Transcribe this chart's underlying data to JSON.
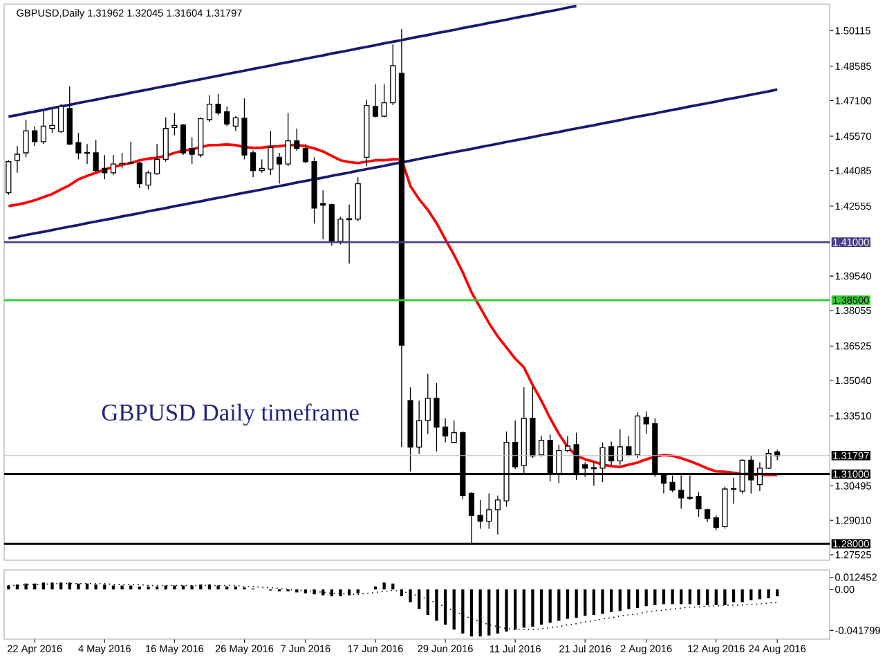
{
  "chart_data": [
    {
      "type": "candlestick",
      "title": "GBPUSD,Daily  1.31962 1.32045 1.31604 1.31797",
      "categories": [
        null,
        null,
        null,
        null,
        null,
        null,
        null,
        null,
        null,
        null,
        null,
        null,
        null,
        null,
        null,
        null,
        null,
        null,
        null,
        null,
        null,
        null,
        null,
        null,
        null,
        null,
        null,
        null,
        null,
        null,
        null,
        null,
        null,
        null,
        null,
        null,
        null,
        null,
        null,
        null,
        null,
        null,
        null,
        null,
        null,
        null,
        null,
        null,
        null,
        null,
        null,
        null,
        null,
        null,
        null,
        null,
        null,
        null,
        null,
        null,
        null,
        null,
        null,
        null,
        null,
        null,
        null,
        null,
        null,
        null,
        null,
        null,
        null,
        null,
        null,
        null,
        null,
        null,
        null,
        null,
        null,
        null,
        null,
        null,
        null,
        null,
        null,
        null,
        null
      ],
      "ohlc": [
        [
          1.4313,
          1.4453,
          1.4304,
          1.4447
        ],
        [
          1.4453,
          1.4514,
          1.4399,
          1.4479
        ],
        [
          1.4485,
          1.4628,
          1.4466,
          1.458
        ],
        [
          1.458,
          1.46,
          1.4514,
          1.4533
        ],
        [
          1.4533,
          1.4666,
          1.4523,
          1.46
        ],
        [
          1.459,
          1.4676,
          1.4571,
          1.4603
        ],
        [
          1.4577,
          1.4695,
          1.4571,
          1.4685
        ],
        [
          1.4676,
          1.4771,
          1.4519,
          1.4523
        ],
        [
          1.4529,
          1.4571,
          1.4457,
          1.4485
        ],
        [
          1.4487,
          1.4523,
          1.4437,
          1.4483
        ],
        [
          1.4485,
          1.4542,
          1.4403,
          1.4409
        ],
        [
          1.4418,
          1.4476,
          1.4371,
          1.4399
        ],
        [
          1.4399,
          1.4476,
          1.439,
          1.4437
        ],
        [
          1.4434,
          1.4485,
          1.4418,
          1.4439
        ],
        [
          1.4441,
          1.4533,
          1.4437,
          1.4443
        ],
        [
          1.4441,
          1.4447,
          1.4333,
          1.4352
        ],
        [
          1.4346,
          1.4409,
          1.4327,
          1.4399
        ],
        [
          1.4395,
          1.4523,
          1.439,
          1.4457
        ],
        [
          1.4457,
          1.4638,
          1.4447,
          1.459
        ],
        [
          1.4594,
          1.4657,
          1.4561,
          1.4603
        ],
        [
          1.4605,
          1.4609,
          1.4476,
          1.4485
        ],
        [
          1.4504,
          1.4552,
          1.4437,
          1.4479
        ],
        [
          1.4476,
          1.4638,
          1.4466,
          1.4632
        ],
        [
          1.4628,
          1.4733,
          1.4619,
          1.4695
        ],
        [
          1.4695,
          1.4739,
          1.4647,
          1.4657
        ],
        [
          1.4662,
          1.4685,
          1.46,
          1.4609
        ],
        [
          1.46,
          1.4643,
          1.458,
          1.4636
        ],
        [
          1.4634,
          1.472,
          1.4457,
          1.4476
        ],
        [
          1.4485,
          1.4495,
          1.438,
          1.4409
        ],
        [
          1.4409,
          1.4457,
          1.4399,
          1.4418
        ],
        [
          1.4415,
          1.458,
          1.439,
          1.4508
        ],
        [
          1.4466,
          1.4485,
          1.4352,
          1.4437
        ],
        [
          1.4437,
          1.4657,
          1.4428,
          1.4537
        ],
        [
          1.4537,
          1.459,
          1.4495,
          1.4504
        ],
        [
          1.4504,
          1.4523,
          1.4441,
          1.4447
        ],
        [
          1.4447,
          1.4466,
          1.418,
          1.4247
        ],
        [
          1.4266,
          1.4323,
          1.4113,
          1.426
        ],
        [
          1.4262,
          1.4266,
          1.4085,
          1.4104
        ],
        [
          1.4104,
          1.4209,
          1.409,
          1.4199
        ],
        [
          1.4201,
          1.4262,
          1.4008,
          1.4197
        ],
        [
          1.4199,
          1.438,
          1.419,
          1.4352
        ],
        [
          1.4466,
          1.4714,
          1.4428,
          1.4689
        ],
        [
          1.4685,
          1.4781,
          1.4638,
          1.4643
        ],
        [
          1.4643,
          1.4781,
          1.4638,
          1.4701
        ],
        [
          1.4701,
          1.4952,
          1.4691,
          1.4861
        ],
        [
          1.4828,
          1.5019,
          1.3217,
          1.3656
        ],
        [
          1.3417,
          1.3474,
          1.3112,
          1.3217
        ],
        [
          1.3217,
          1.3417,
          1.3188,
          1.3331
        ],
        [
          1.3331,
          1.3532,
          1.3274,
          1.3427
        ],
        [
          1.3427,
          1.3493,
          1.3198,
          1.3303
        ],
        [
          1.3303,
          1.3341,
          1.3237,
          1.3265
        ],
        [
          1.3237,
          1.3332,
          1.3233,
          1.3279
        ],
        [
          1.3279,
          1.3284,
          1.2993,
          1.3008
        ],
        [
          1.3017,
          1.3023,
          1.2798,
          1.2922
        ],
        [
          1.2922,
          1.2989,
          1.2865,
          1.2897
        ],
        [
          1.2897,
          1.3017,
          1.2865,
          1.2947
        ],
        [
          1.2947,
          1.3008,
          1.284,
          1.2989
        ],
        [
          1.2985,
          1.3284,
          1.296,
          1.3237
        ],
        [
          1.3237,
          1.3332,
          1.3122,
          1.3132
        ],
        [
          1.3137,
          1.3475,
          1.3103,
          1.3341
        ],
        [
          1.3341,
          1.3475,
          1.317,
          1.3179
        ],
        [
          1.3183,
          1.3265,
          1.3176,
          1.3246
        ],
        [
          1.3246,
          1.3271,
          1.3069,
          1.3103
        ],
        [
          1.3103,
          1.3227,
          1.3061,
          1.3202
        ],
        [
          1.3202,
          1.3265,
          1.3195,
          1.3221
        ],
        [
          1.3227,
          1.3279,
          1.3075,
          1.3099
        ],
        [
          1.3141,
          1.3151,
          1.3088,
          1.3126
        ],
        [
          1.3128,
          1.3151,
          1.305,
          1.3124
        ],
        [
          1.3126,
          1.3237,
          1.3065,
          1.3214
        ],
        [
          1.3218,
          1.324,
          1.3137,
          1.3157
        ],
        [
          1.3157,
          1.3294,
          1.3141,
          1.3218
        ],
        [
          1.3218,
          1.3265,
          1.3176,
          1.3183
        ],
        [
          1.3183,
          1.3366,
          1.317,
          1.3351
        ],
        [
          1.3345,
          1.337,
          1.3275,
          1.3317
        ],
        [
          1.3317,
          1.3341,
          1.3088,
          1.3099
        ],
        [
          1.3099,
          1.3103,
          1.3017,
          1.3061
        ],
        [
          1.3065,
          1.3094,
          1.3023,
          1.3031
        ],
        [
          1.3031,
          1.3094,
          1.2951,
          1.2998
        ],
        [
          1.3,
          1.3094,
          1.2989,
          1.2996
        ],
        [
          1.3004,
          1.3023,
          1.2916,
          1.2951
        ],
        [
          1.2947,
          1.2951,
          1.2893,
          1.2909
        ],
        [
          1.2912,
          1.2922,
          1.2859,
          1.287
        ],
        [
          1.2874,
          1.3046,
          1.2865,
          1.3036
        ],
        [
          1.3038,
          1.3084,
          1.2973,
          1.3034
        ],
        [
          1.3027,
          1.3164,
          1.3017,
          1.316
        ],
        [
          1.316,
          1.3179,
          1.3017,
          1.3075
        ],
        [
          1.3055,
          1.3151,
          1.3027,
          1.3126
        ],
        [
          1.3126,
          1.3208,
          1.3122,
          1.3189
        ],
        [
          1.31962,
          1.32045,
          1.31604,
          1.31797
        ]
      ],
      "series": [
        {
          "type": "line",
          "color": "#ff0000",
          "values": [
            1.4256,
            1.4262,
            1.427,
            1.4281,
            1.4294,
            1.4308,
            1.4327,
            1.4346,
            1.4371,
            1.4386,
            1.4399,
            1.4413,
            1.4424,
            1.4434,
            1.4441,
            1.4453,
            1.446,
            1.4464,
            1.4472,
            1.4485,
            1.4495,
            1.45,
            1.451,
            1.4518,
            1.4519,
            1.4521,
            1.4518,
            1.451,
            1.4506,
            1.4508,
            1.4512,
            1.4514,
            1.4518,
            1.4519,
            1.4514,
            1.4504,
            1.4491,
            1.4472,
            1.4453,
            1.4445,
            1.4441,
            1.4447,
            1.4453,
            1.4453,
            1.4457,
            1.4457,
            1.4342,
            1.4285,
            1.4239,
            1.4182,
            1.4113,
            1.4045,
            1.397,
            1.3884,
            1.3818,
            1.3751,
            1.3694,
            1.3646,
            1.3598,
            1.356,
            1.3484,
            1.3417,
            1.3341,
            1.3274,
            1.3217,
            1.3179,
            1.3164,
            1.3154,
            1.3141,
            1.3135,
            1.3131,
            1.3141,
            1.315,
            1.3164,
            1.3175,
            1.3183,
            1.3179,
            1.3169,
            1.3156,
            1.3141,
            1.3125,
            1.3112,
            1.311,
            1.3106,
            1.3102,
            1.3099,
            1.3097,
            1.3097,
            1.3097
          ]
        },
        {
          "type": "line",
          "color": "#191970",
          "values": [
            1.4641,
            1.4648,
            1.4656,
            1.4663,
            1.467,
            1.4678,
            1.4685,
            1.4692,
            1.47,
            1.4707,
            1.4714,
            1.4722,
            1.4729,
            1.4736,
            1.4744,
            1.4751,
            1.4758,
            1.4766,
            1.4773,
            1.478,
            1.4788,
            1.4795,
            1.4802,
            1.481,
            1.4817,
            1.4825,
            1.4832,
            1.4839,
            1.4847,
            1.4854,
            1.4861,
            1.4869,
            1.4876,
            1.4883,
            1.4891,
            1.4898,
            1.4905,
            1.4913,
            1.492,
            1.4927,
            1.4935,
            1.4942,
            1.4949,
            1.4957,
            1.4964,
            1.4971,
            1.4979,
            1.4986,
            1.4993,
            1.5001,
            1.5008,
            1.5015,
            1.5023,
            1.503,
            1.5037,
            1.5045,
            1.5052,
            1.5059,
            1.5067,
            1.5074,
            1.5081,
            1.5089,
            1.5096,
            1.5103,
            1.5111,
            1.5118,
            null,
            null,
            null,
            null,
            null,
            null,
            null,
            null,
            null,
            null,
            null,
            null,
            null,
            null,
            null,
            null,
            null,
            null,
            null,
            null,
            null,
            null,
            null
          ]
        },
        {
          "type": "line",
          "color": "#191970",
          "values": [
            1.4116,
            1.4123,
            1.4131,
            1.4138,
            1.4145,
            1.4152,
            1.416,
            1.4167,
            1.4174,
            1.4182,
            1.4189,
            1.4196,
            1.4203,
            1.4211,
            1.4218,
            1.4225,
            1.4233,
            1.424,
            1.4247,
            1.4255,
            1.4262,
            1.4269,
            1.4276,
            1.4284,
            1.4291,
            1.4298,
            1.4306,
            1.4313,
            1.432,
            1.4327,
            1.4335,
            1.4342,
            1.4349,
            1.4357,
            1.4364,
            1.4371,
            1.4378,
            1.4386,
            1.4393,
            1.44,
            1.4408,
            1.4415,
            1.4422,
            1.4429,
            1.4437,
            1.4444,
            1.4451,
            1.4459,
            1.4466,
            1.4473,
            1.4481,
            1.4488,
            1.4495,
            1.4502,
            1.451,
            1.4517,
            1.4524,
            1.4532,
            1.4539,
            1.4546,
            1.4553,
            1.4561,
            1.4568,
            1.4575,
            1.4583,
            1.459,
            1.4597,
            1.4604,
            1.4612,
            1.4619,
            1.4626,
            1.4634,
            1.4641,
            1.4648,
            1.4655,
            1.4663,
            1.467,
            1.4677,
            1.4685,
            1.4692,
            1.4699,
            1.4706,
            1.4714,
            1.4721,
            1.4728,
            1.4736,
            1.4743,
            1.475,
            1.4758
          ]
        }
      ],
      "ylim": [
        1.2729,
        1.5126
      ],
      "yticks": [
        1.50115,
        1.48585,
        {
          "value": 1.471,
          "label": "1.47100"
        },
        {
          "value": 1.4557,
          "label": "1.45570"
        },
        1.44085,
        1.42555,
        {
          "value": 1.3954,
          "label": "1.39540"
        },
        1.38055,
        1.36525,
        {
          "value": 1.3504,
          "label": "1.35040"
        },
        {
          "value": 1.3351,
          "label": "1.33510"
        },
        1.30495,
        {
          "value": 1.2901,
          "label": "1.29010"
        },
        1.27525
      ],
      "ref_lines": [
        {
          "axis": "y",
          "value": 1.41,
          "label": "1.41000",
          "color": "#483d8b"
        },
        {
          "axis": "y",
          "value": 1.385,
          "label": "1.38500",
          "color": "#33cc33"
        },
        {
          "axis": "y",
          "value": 1.31797,
          "label": "1.31797",
          "color": "#c0c0c0"
        },
        {
          "axis": "y",
          "value": 1.31,
          "label": "1.31000",
          "color": "#000000"
        },
        {
          "axis": "y",
          "value": 1.28,
          "label": "1.28000",
          "color": "#000000"
        }
      ],
      "annotations": [
        "GBPUSD Daily timeframe"
      ],
      "tick_labels": "y",
      "grid": false
    },
    {
      "type": "bar",
      "categories": [
        null,
        null,
        null,
        "22 Apr 2016",
        null,
        null,
        null,
        null,
        null,
        null,
        null,
        "4 May 2016",
        null,
        null,
        null,
        null,
        null,
        null,
        null,
        "16 May 2016",
        null,
        null,
        null,
        null,
        null,
        null,
        null,
        "26 May 2016",
        null,
        null,
        null,
        null,
        null,
        null,
        "7 Jun 2016",
        null,
        null,
        null,
        null,
        null,
        null,
        null,
        "17 Jun 2016",
        null,
        null,
        null,
        null,
        null,
        null,
        null,
        "29 Jun 2016",
        null,
        null,
        null,
        null,
        null,
        null,
        null,
        "11 Jul 2016",
        null,
        null,
        null,
        null,
        null,
        null,
        null,
        "21 Jul 2016",
        null,
        null,
        null,
        null,
        null,
        null,
        "2 Aug 2016",
        null,
        null,
        null,
        null,
        null,
        null,
        null,
        "12 Aug 2016",
        null,
        null,
        null,
        null,
        null,
        null,
        "24 Aug 2016"
      ],
      "series": [
        {
          "type": "bar",
          "color": "#000000",
          "values": [
            0.004,
            0.005,
            0.006,
            0.006,
            0.007,
            0.007,
            0.007,
            0.007,
            0.006,
            0.006,
            0.005,
            0.005,
            0.004,
            0.004,
            0.004,
            0.003,
            0.003,
            0.003,
            0.004,
            0.004,
            0.004,
            0.004,
            0.005,
            0.005,
            0.004,
            0.003,
            0.003,
            0.002,
            0.001,
            0,
            -0.001,
            -0.002,
            -0.002,
            -0.003,
            -0.004,
            -0.005,
            -0.006,
            -0.007,
            -0.007,
            -0.006,
            -0.004,
            0,
            0.003,
            0.007,
            0.006,
            -0.007,
            -0.013,
            -0.02,
            -0.026,
            -0.032,
            -0.036,
            -0.041,
            -0.045,
            -0.048,
            -0.048,
            -0.047,
            -0.045,
            -0.043,
            -0.041,
            -0.039,
            -0.038,
            -0.036,
            -0.034,
            -0.032,
            -0.03,
            -0.029,
            -0.027,
            -0.026,
            -0.025,
            -0.023,
            -0.022,
            -0.02,
            -0.019,
            -0.017,
            -0.016,
            -0.015,
            -0.015,
            -0.015,
            -0.015,
            -0.016,
            -0.016,
            -0.016,
            -0.016,
            -0.013,
            -0.013,
            -0.011,
            -0.01,
            -0.009,
            -0.007
          ]
        },
        {
          "type": "line",
          "color": "#000000",
          "line_style": "dotted",
          "values": [
            0.004,
            0.004,
            0.005,
            0.005,
            0.005,
            0.006,
            0.006,
            0.006,
            0.006,
            0.006,
            0.006,
            0.006,
            0.005,
            0.005,
            0.005,
            0.005,
            0.004,
            0.004,
            0.004,
            0.004,
            0.004,
            0.004,
            0.004,
            0.004,
            0.004,
            0.004,
            0.004,
            0.003,
            0.003,
            0.002,
            0.002,
            0.001,
            0,
            -0.001,
            -0.001,
            -0.002,
            -0.003,
            -0.004,
            -0.004,
            -0.005,
            -0.005,
            -0.004,
            -0.003,
            -0.002,
            -0.001,
            -0.002,
            -0.004,
            -0.007,
            -0.01,
            -0.014,
            -0.018,
            -0.022,
            -0.026,
            -0.03,
            -0.033,
            -0.036,
            -0.038,
            -0.04,
            -0.041,
            -0.041,
            -0.041,
            -0.04,
            -0.039,
            -0.038,
            -0.036,
            -0.035,
            -0.033,
            -0.032,
            -0.03,
            -0.029,
            -0.027,
            -0.026,
            -0.025,
            -0.023,
            -0.022,
            -0.021,
            -0.02,
            -0.019,
            -0.018,
            -0.018,
            -0.017,
            -0.017,
            -0.016,
            -0.016,
            -0.016,
            -0.015,
            -0.015,
            -0.014,
            -0.013
          ]
        }
      ],
      "ylim": [
        -0.0507,
        0.0199
      ],
      "yticks": [
        0.012452,
        {
          "value": 0,
          "label": "0.00"
        },
        -0.041799
      ],
      "grid": false
    }
  ]
}
